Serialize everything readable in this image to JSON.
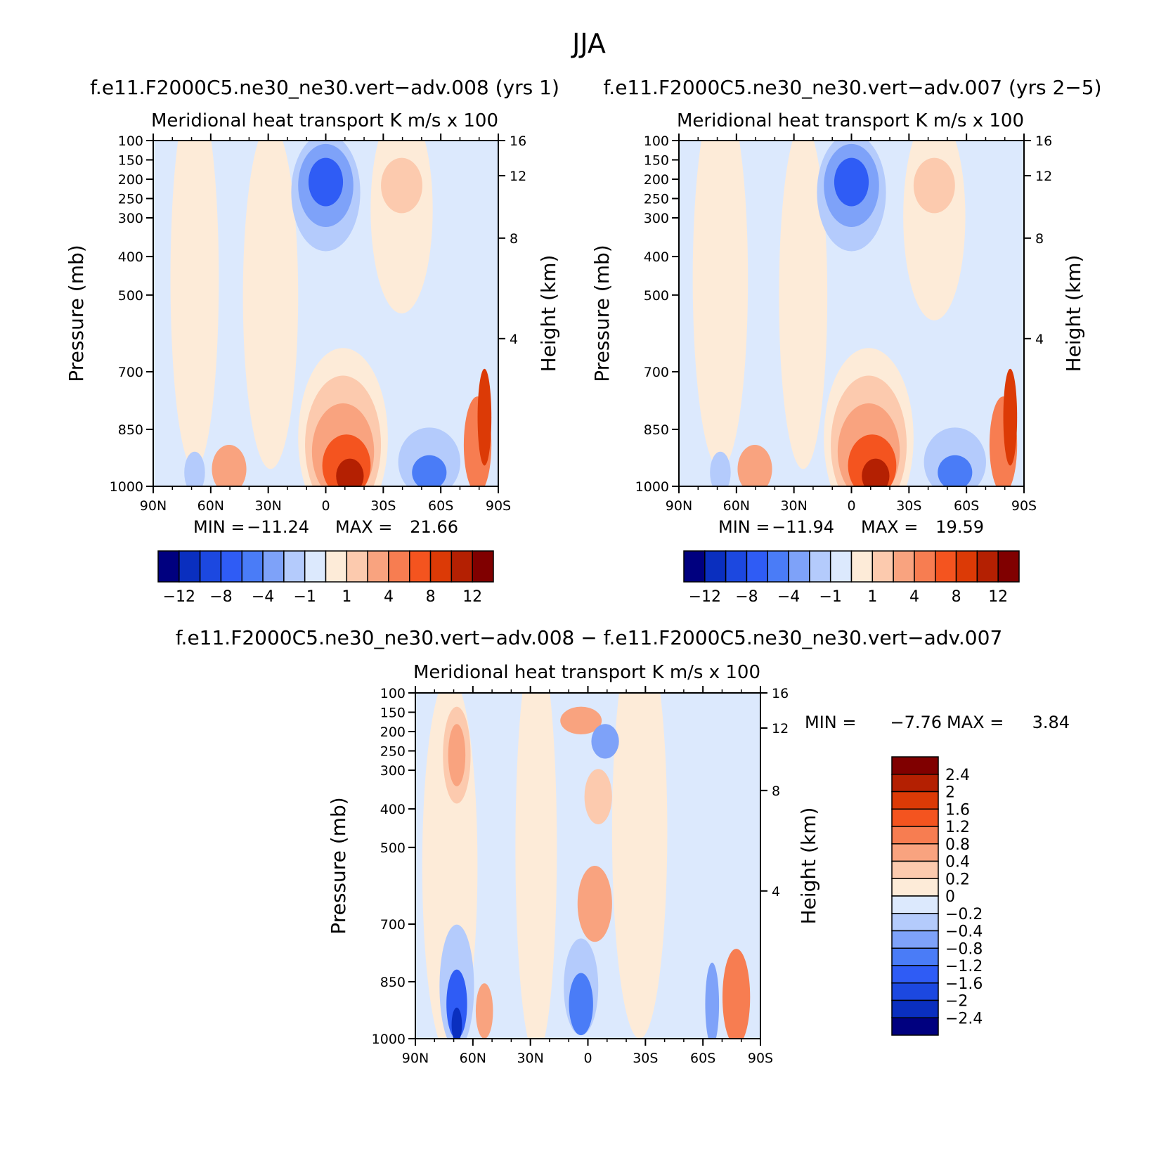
{
  "figure_title": "JJA",
  "palette": [
    "#00007f",
    "#0a2fbf",
    "#1c48e0",
    "#2f5cf5",
    "#4a7cf7",
    "#7ea2f9",
    "#b4cbfc",
    "#dce9fd",
    "#fdebd8",
    "#fccaae",
    "#f9a37f",
    "#f77d51",
    "#f4541f",
    "#dc3a06",
    "#b42002",
    "#800000"
  ],
  "chart_data": [
    {
      "type": "heatmap",
      "title": "f.e11.F2000C5.ne30_ne30.vert−adv.008 (yrs 1)",
      "subtitle_left": "Meridional heat transport",
      "subtitle_right": "K m/s x 100",
      "ylabel": "Pressure (mb)",
      "y2label": "Height (km)",
      "x_ticks": [
        "90N",
        "60N",
        "30N",
        "0",
        "30S",
        "60S",
        "90S"
      ],
      "y_ticks": [
        "100",
        "150",
        "200",
        "250",
        "300",
        "400",
        "500",
        "700",
        "850",
        "1000"
      ],
      "y2_ticks": [
        "16",
        "12",
        "8",
        "4"
      ],
      "stats": {
        "min_label": "MIN =",
        "min": "−11.24",
        "max_label": "MAX =",
        "max": "21.66"
      },
      "colorbar": {
        "orientation": "horizontal",
        "labels": [
          "−12",
          "−8",
          "−4",
          "−1",
          "1",
          "4",
          "8",
          "12"
        ]
      }
    },
    {
      "type": "heatmap",
      "title": "f.e11.F2000C5.ne30_ne30.vert−adv.007 (yrs 2−5)",
      "subtitle_left": "Meridional heat transport",
      "subtitle_right": "K m/s x 100",
      "ylabel": "Pressure (mb)",
      "y2label": "Height (km)",
      "x_ticks": [
        "90N",
        "60N",
        "30N",
        "0",
        "30S",
        "60S",
        "90S"
      ],
      "y_ticks": [
        "100",
        "150",
        "200",
        "250",
        "300",
        "400",
        "500",
        "700",
        "850",
        "1000"
      ],
      "y2_ticks": [
        "16",
        "12",
        "8",
        "4"
      ],
      "stats": {
        "min_label": "MIN =",
        "min": "−11.94",
        "max_label": "MAX =",
        "max": "19.59"
      },
      "colorbar": {
        "orientation": "horizontal",
        "labels": [
          "−12",
          "−8",
          "−4",
          "−1",
          "1",
          "4",
          "8",
          "12"
        ]
      }
    },
    {
      "type": "heatmap",
      "title": "f.e11.F2000C5.ne30_ne30.vert−adv.008 − f.e11.F2000C5.ne30_ne30.vert−adv.007",
      "subtitle_left": "Meridional heat transport",
      "subtitle_right": "K m/s x 100",
      "ylabel": "Pressure (mb)",
      "y2label": "Height (km)",
      "x_ticks": [
        "90N",
        "60N",
        "30N",
        "0",
        "30S",
        "60S",
        "90S"
      ],
      "y_ticks": [
        "100",
        "150",
        "200",
        "250",
        "300",
        "400",
        "500",
        "700",
        "850",
        "1000"
      ],
      "y2_ticks": [
        "16",
        "12",
        "8",
        "4"
      ],
      "stats": {
        "min_label": "MIN =",
        "min": "−7.76",
        "max_label": "MAX =",
        "max": "3.84"
      },
      "colorbar": {
        "orientation": "vertical",
        "labels": [
          "2.4",
          "2",
          "1.6",
          "1.2",
          "0.8",
          "0.4",
          "0.2",
          "0",
          "−0.2",
          "−0.4",
          "−0.8",
          "−1.2",
          "−1.6",
          "−2",
          "−2.4"
        ]
      }
    }
  ]
}
